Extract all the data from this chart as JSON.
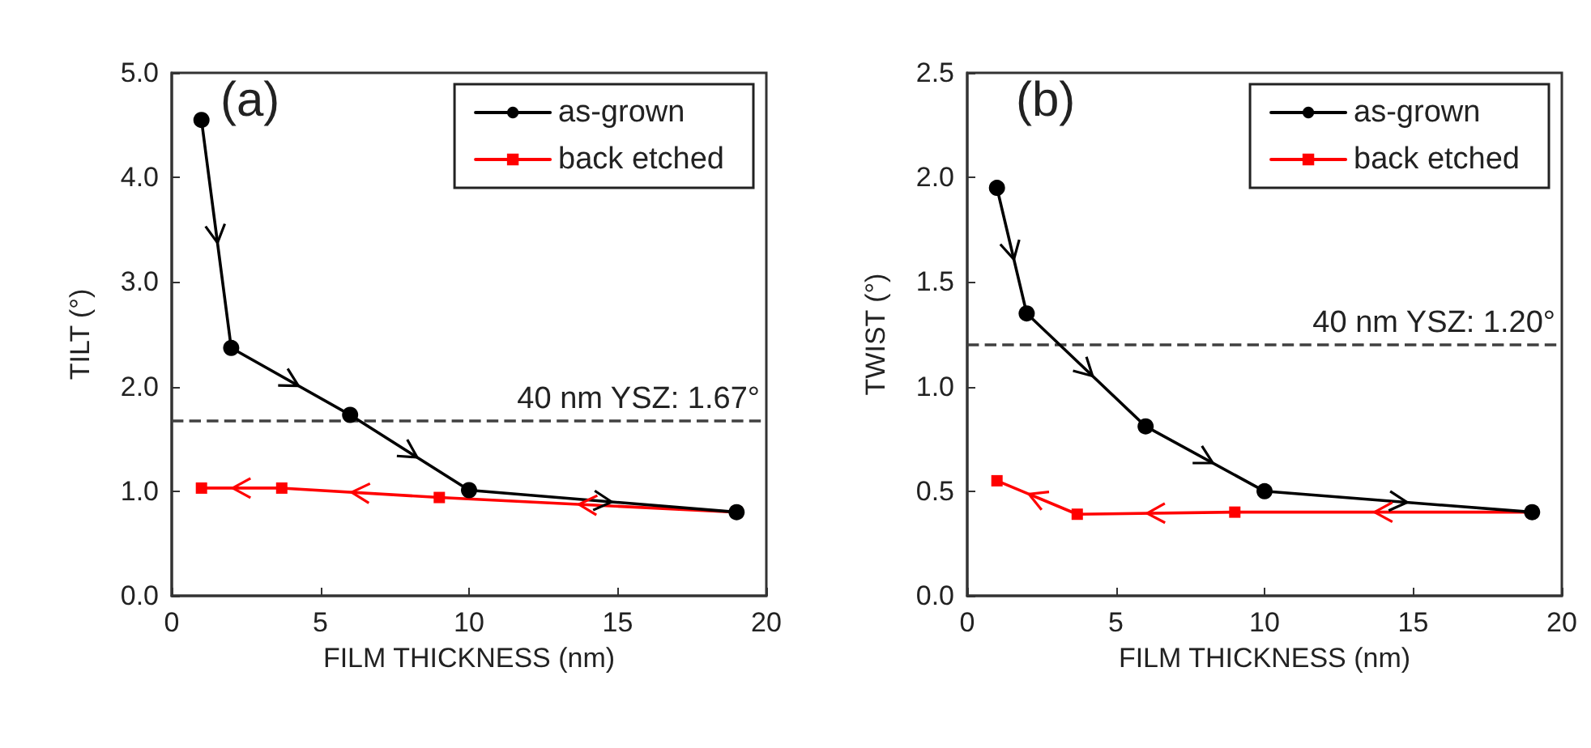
{
  "chart_data": [
    {
      "type": "line",
      "ylabel": "TILT (°)",
      "xlabel": "FILM THICKNESS (nm)",
      "annotations": [
        "(a)"
      ],
      "xlim": [
        0,
        20
      ],
      "xticks": [
        0,
        5,
        10,
        15,
        20
      ],
      "ylim": [
        0,
        5
      ],
      "yticks": [
        {
          "value": 0,
          "label": "0.0"
        },
        {
          "value": 1,
          "label": "1.0"
        },
        {
          "value": 2,
          "label": "2.0"
        },
        {
          "value": 3,
          "label": "3.0"
        },
        {
          "value": 4,
          "label": "4.0"
        },
        {
          "value": 5,
          "label": "5.0"
        }
      ],
      "legend": "top right",
      "grid": false,
      "series": [
        {
          "name": "as-grown",
          "color": "#000000",
          "marker": "circle",
          "x": [
            1,
            2,
            6,
            10,
            19
          ],
          "values": [
            4.55,
            2.37,
            1.73,
            1.01,
            0.8
          ]
        },
        {
          "name": "back etched",
          "color": "#ff0000",
          "marker": "square",
          "x": [
            19,
            9,
            3.7,
            1
          ],
          "values": [
            0.8,
            0.94,
            1.03,
            1.03
          ]
        }
      ],
      "ref_lines": [
        {
          "axis": "y",
          "value": 1.67,
          "label": "40 nm YSZ: 1.67°",
          "color": "#404040",
          "line_style": "dashed"
        }
      ]
    },
    {
      "type": "line",
      "ylabel": "TWIST (°)",
      "xlabel": "FILM THICKNESS (nm)",
      "annotations": [
        "(b)"
      ],
      "xlim": [
        0,
        20
      ],
      "xticks": [
        0,
        5,
        10,
        15,
        20
      ],
      "ylim": [
        0,
        2.5
      ],
      "yticks": [
        {
          "value": 0,
          "label": "0.0"
        },
        {
          "value": 0.5,
          "label": "0.5"
        },
        {
          "value": 1,
          "label": "1.0"
        },
        {
          "value": 1.5,
          "label": "1.5"
        },
        {
          "value": 2,
          "label": "2.0"
        },
        {
          "value": 2.5,
          "label": "2.5"
        }
      ],
      "legend": "top right",
      "grid": false,
      "series": [
        {
          "name": "as-grown",
          "color": "#000000",
          "marker": "circle",
          "x": [
            1,
            2,
            6,
            10,
            19
          ],
          "values": [
            1.95,
            1.35,
            0.81,
            0.5,
            0.4
          ]
        },
        {
          "name": "back etched",
          "color": "#ff0000",
          "marker": "square",
          "x": [
            19,
            9,
            3.7,
            1
          ],
          "values": [
            0.4,
            0.4,
            0.39,
            0.55
          ]
        }
      ],
      "ref_lines": [
        {
          "axis": "y",
          "value": 1.2,
          "label": "40 nm YSZ: 1.20°",
          "color": "#404040",
          "line_style": "dashed"
        }
      ]
    }
  ]
}
